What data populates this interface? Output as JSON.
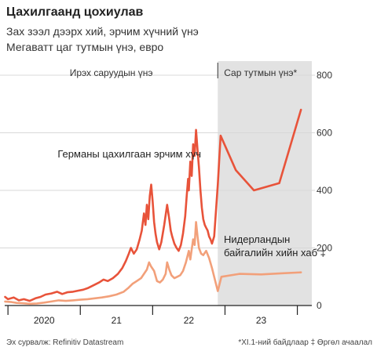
{
  "title": "Цахилгаанд цохиулав",
  "subtitle_line1": "Зах зээл дээрх хий, эрчим хүчний үнэ",
  "subtitle_line2": "Мегаватт цаг тутмын үнэ, евро",
  "footer": {
    "source": "Эх сурвалж: Refinitiv Datastream",
    "note": "*XI.1-ний байдлаар ‡ Өргөл ачаалал"
  },
  "colors": {
    "electricity": "#e8533a",
    "gas": "#f2a07a",
    "shade": "#e2e2e2",
    "grid": "#d8d8d8",
    "axis": "#222222"
  },
  "chart_data": {
    "type": "line",
    "title": "Цахилгаанд цохиулав",
    "ylabel": "Мегаватт цаг тутмын үнэ, евро",
    "ylim": [
      0,
      800
    ],
    "y_ticks": [
      0,
      200,
      400,
      600,
      800
    ],
    "y_tick_labels": [
      "0",
      "200",
      "400",
      "600",
      "800"
    ],
    "x_labels": [
      {
        "label": "2020",
        "t": 0.5
      },
      {
        "label": "21",
        "t": 1.5
      },
      {
        "label": "22",
        "t": 2.5
      },
      {
        "label": "23",
        "t": 3.5
      }
    ],
    "x_year_starts": [
      0,
      1,
      2,
      3,
      4
    ],
    "x_range": [
      -0.045,
      4.2
    ],
    "forward_region": {
      "start": 2.9,
      "end": 4.2
    },
    "region_labels": {
      "daily": "Ирэх саруудын үнэ",
      "monthly": "Сар тутмын үнэ*"
    },
    "series": [
      {
        "name": "Германы цахилгаан эрчим хүч",
        "color": "#e8533a",
        "points": [
          [
            -0.04,
            30
          ],
          [
            0.0,
            22
          ],
          [
            0.08,
            28
          ],
          [
            0.15,
            18
          ],
          [
            0.22,
            22
          ],
          [
            0.3,
            16
          ],
          [
            0.38,
            25
          ],
          [
            0.45,
            30
          ],
          [
            0.52,
            38
          ],
          [
            0.6,
            42
          ],
          [
            0.68,
            48
          ],
          [
            0.75,
            40
          ],
          [
            0.82,
            46
          ],
          [
            0.9,
            48
          ],
          [
            0.98,
            52
          ],
          [
            1.04,
            55
          ],
          [
            1.1,
            60
          ],
          [
            1.18,
            70
          ],
          [
            1.26,
            80
          ],
          [
            1.32,
            90
          ],
          [
            1.38,
            85
          ],
          [
            1.45,
            95
          ],
          [
            1.52,
            110
          ],
          [
            1.58,
            130
          ],
          [
            1.63,
            155
          ],
          [
            1.67,
            180
          ],
          [
            1.7,
            200
          ],
          [
            1.74,
            180
          ],
          [
            1.78,
            195
          ],
          [
            1.82,
            230
          ],
          [
            1.85,
            260
          ],
          [
            1.88,
            320
          ],
          [
            1.9,
            280
          ],
          [
            1.92,
            350
          ],
          [
            1.94,
            300
          ],
          [
            1.96,
            380
          ],
          [
            1.98,
            420
          ],
          [
            2.0,
            360
          ],
          [
            2.02,
            290
          ],
          [
            2.04,
            250
          ],
          [
            2.06,
            220
          ],
          [
            2.09,
            195
          ],
          [
            2.12,
            220
          ],
          [
            2.16,
            280
          ],
          [
            2.2,
            350
          ],
          [
            2.23,
            300
          ],
          [
            2.25,
            260
          ],
          [
            2.27,
            240
          ],
          [
            2.3,
            215
          ],
          [
            2.33,
            200
          ],
          [
            2.36,
            190
          ],
          [
            2.39,
            210
          ],
          [
            2.42,
            250
          ],
          [
            2.45,
            310
          ],
          [
            2.47,
            380
          ],
          [
            2.49,
            440
          ],
          [
            2.5,
            400
          ],
          [
            2.52,
            500
          ],
          [
            2.54,
            450
          ],
          [
            2.56,
            560
          ],
          [
            2.58,
            520
          ],
          [
            2.6,
            610
          ],
          [
            2.62,
            540
          ],
          [
            2.64,
            480
          ],
          [
            2.66,
            400
          ],
          [
            2.68,
            340
          ],
          [
            2.7,
            300
          ],
          [
            2.72,
            280
          ],
          [
            2.74,
            270
          ],
          [
            2.76,
            260
          ],
          [
            2.78,
            240
          ],
          [
            2.8,
            230
          ],
          [
            2.82,
            215
          ],
          [
            2.85,
            240
          ],
          [
            2.9,
            420
          ],
          [
            2.94,
            590
          ],
          [
            3.15,
            470
          ],
          [
            3.4,
            400
          ],
          [
            3.75,
            425
          ],
          [
            4.05,
            680
          ]
        ]
      },
      {
        "name": "Нидерландын байгалийн хийн хаб ‡",
        "color": "#f2a07a",
        "points": [
          [
            -0.04,
            14
          ],
          [
            0.05,
            12
          ],
          [
            0.12,
            9
          ],
          [
            0.2,
            8
          ],
          [
            0.3,
            6
          ],
          [
            0.4,
            7
          ],
          [
            0.5,
            10
          ],
          [
            0.6,
            14
          ],
          [
            0.7,
            18
          ],
          [
            0.8,
            16
          ],
          [
            0.9,
            18
          ],
          [
            1.0,
            20
          ],
          [
            1.1,
            22
          ],
          [
            1.2,
            25
          ],
          [
            1.3,
            28
          ],
          [
            1.4,
            32
          ],
          [
            1.5,
            38
          ],
          [
            1.6,
            48
          ],
          [
            1.66,
            60
          ],
          [
            1.72,
            75
          ],
          [
            1.78,
            85
          ],
          [
            1.84,
            95
          ],
          [
            1.88,
            110
          ],
          [
            1.92,
            125
          ],
          [
            1.95,
            150
          ],
          [
            1.98,
            135
          ],
          [
            2.02,
            120
          ],
          [
            2.06,
            85
          ],
          [
            2.1,
            80
          ],
          [
            2.14,
            90
          ],
          [
            2.18,
            110
          ],
          [
            2.2,
            150
          ],
          [
            2.23,
            125
          ],
          [
            2.26,
            105
          ],
          [
            2.3,
            95
          ],
          [
            2.34,
            100
          ],
          [
            2.38,
            105
          ],
          [
            2.42,
            120
          ],
          [
            2.46,
            150
          ],
          [
            2.5,
            190
          ],
          [
            2.52,
            160
          ],
          [
            2.54,
            195
          ],
          [
            2.56,
            230
          ],
          [
            2.58,
            210
          ],
          [
            2.6,
            290
          ],
          [
            2.62,
            240
          ],
          [
            2.64,
            200
          ],
          [
            2.67,
            180
          ],
          [
            2.7,
            175
          ],
          [
            2.74,
            190
          ],
          [
            2.78,
            165
          ],
          [
            2.82,
            130
          ],
          [
            2.86,
            90
          ],
          [
            2.9,
            50
          ],
          [
            2.95,
            100
          ],
          [
            3.2,
            110
          ],
          [
            3.5,
            108
          ],
          [
            3.8,
            112
          ],
          [
            4.05,
            115
          ]
        ]
      }
    ]
  }
}
